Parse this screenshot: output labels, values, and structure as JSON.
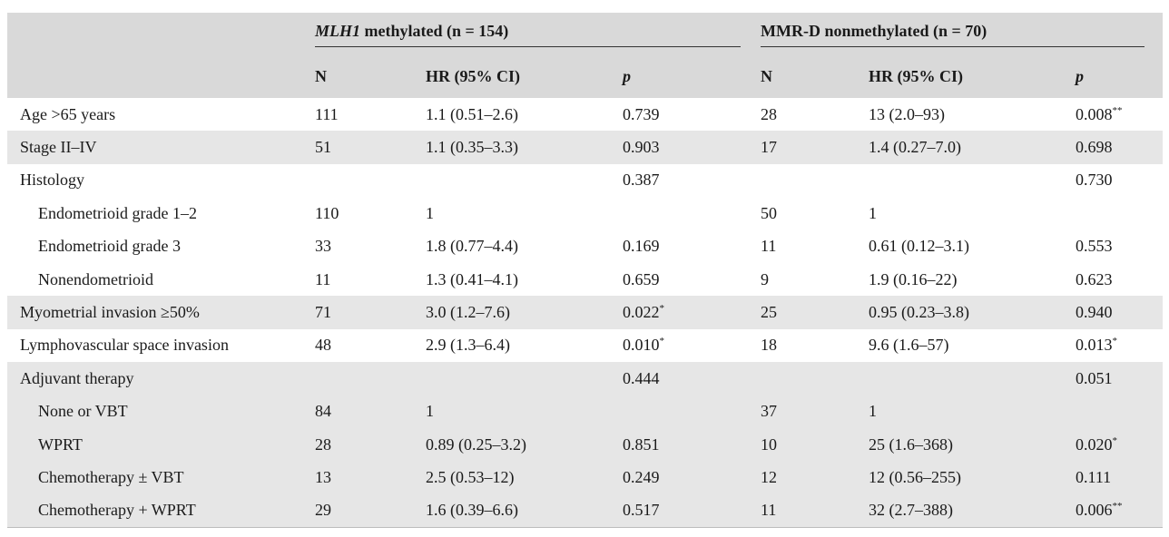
{
  "groups": [
    {
      "name_italic": "MLH1",
      "name_rest": " methylated (n = 154)"
    },
    {
      "name_italic": "",
      "name_rest": "MMR-D nonmethylated (n = 70)"
    }
  ],
  "subheaders": {
    "n": "N",
    "hr": "HR (95% CI)",
    "p": "p"
  },
  "rows": [
    {
      "label": "Age >65 years",
      "indent": false,
      "shaded": false,
      "n1": "111",
      "hr1": "1.1 (0.51–2.6)",
      "p1": "0.739",
      "p1_sup": "",
      "n2": "28",
      "hr2": "13 (2.0–93)",
      "p2": "0.008",
      "p2_sup": "**"
    },
    {
      "label": "Stage II–IV",
      "indent": false,
      "shaded": true,
      "n1": "51",
      "hr1": "1.1 (0.35–3.3)",
      "p1": "0.903",
      "p1_sup": "",
      "n2": "17",
      "hr2": "1.4 (0.27–7.0)",
      "p2": "0.698",
      "p2_sup": ""
    },
    {
      "label": "Histology",
      "indent": false,
      "shaded": false,
      "n1": "",
      "hr1": "",
      "p1": "0.387",
      "p1_sup": "",
      "n2": "",
      "hr2": "",
      "p2": "0.730",
      "p2_sup": ""
    },
    {
      "label": "Endometrioid grade 1–2",
      "indent": true,
      "shaded": false,
      "n1": "110",
      "hr1": "1",
      "p1": "",
      "p1_sup": "",
      "n2": "50",
      "hr2": "1",
      "p2": "",
      "p2_sup": ""
    },
    {
      "label": "Endometrioid grade 3",
      "indent": true,
      "shaded": false,
      "n1": "33",
      "hr1": "1.8 (0.77–4.4)",
      "p1": "0.169",
      "p1_sup": "",
      "n2": "11",
      "hr2": "0.61 (0.12–3.1)",
      "p2": "0.553",
      "p2_sup": ""
    },
    {
      "label": "Nonendometrioid",
      "indent": true,
      "shaded": false,
      "n1": "11",
      "hr1": "1.3 (0.41–4.1)",
      "p1": "0.659",
      "p1_sup": "",
      "n2": "9",
      "hr2": "1.9 (0.16–22)",
      "p2": "0.623",
      "p2_sup": ""
    },
    {
      "label": "Myometrial invasion ≥50%",
      "indent": false,
      "shaded": true,
      "n1": "71",
      "hr1": "3.0 (1.2–7.6)",
      "p1": "0.022",
      "p1_sup": "*",
      "n2": "25",
      "hr2": "0.95 (0.23–3.8)",
      "p2": "0.940",
      "p2_sup": ""
    },
    {
      "label": "Lymphovascular space invasion",
      "indent": false,
      "shaded": false,
      "n1": "48",
      "hr1": "2.9 (1.3–6.4)",
      "p1": "0.010",
      "p1_sup": "*",
      "n2": "18",
      "hr2": "9.6 (1.6–57)",
      "p2": "0.013",
      "p2_sup": "*"
    },
    {
      "label": "Adjuvant therapy",
      "indent": false,
      "shaded": true,
      "n1": "",
      "hr1": "",
      "p1": "0.444",
      "p1_sup": "",
      "n2": "",
      "hr2": "",
      "p2": "0.051",
      "p2_sup": ""
    },
    {
      "label": "None or VBT",
      "indent": true,
      "shaded": true,
      "n1": "84",
      "hr1": "1",
      "p1": "",
      "p1_sup": "",
      "n2": "37",
      "hr2": "1",
      "p2": "",
      "p2_sup": ""
    },
    {
      "label": "WPRT",
      "indent": true,
      "shaded": true,
      "n1": "28",
      "hr1": "0.89 (0.25–3.2)",
      "p1": "0.851",
      "p1_sup": "",
      "n2": "10",
      "hr2": "25 (1.6–368)",
      "p2": "0.020",
      "p2_sup": "*"
    },
    {
      "label": "Chemotherapy ± VBT",
      "indent": true,
      "shaded": true,
      "n1": "13",
      "hr1": "2.5 (0.53–12)",
      "p1": "0.249",
      "p1_sup": "",
      "n2": "12",
      "hr2": "12 (0.56–255)",
      "p2": "0.111",
      "p2_sup": ""
    },
    {
      "label": "Chemotherapy + WPRT",
      "indent": true,
      "shaded": true,
      "n1": "29",
      "hr1": "1.6 (0.39–6.6)",
      "p1": "0.517",
      "p1_sup": "",
      "n2": "11",
      "hr2": "32 (2.7–388)",
      "p2": "0.006",
      "p2_sup": "**"
    }
  ]
}
